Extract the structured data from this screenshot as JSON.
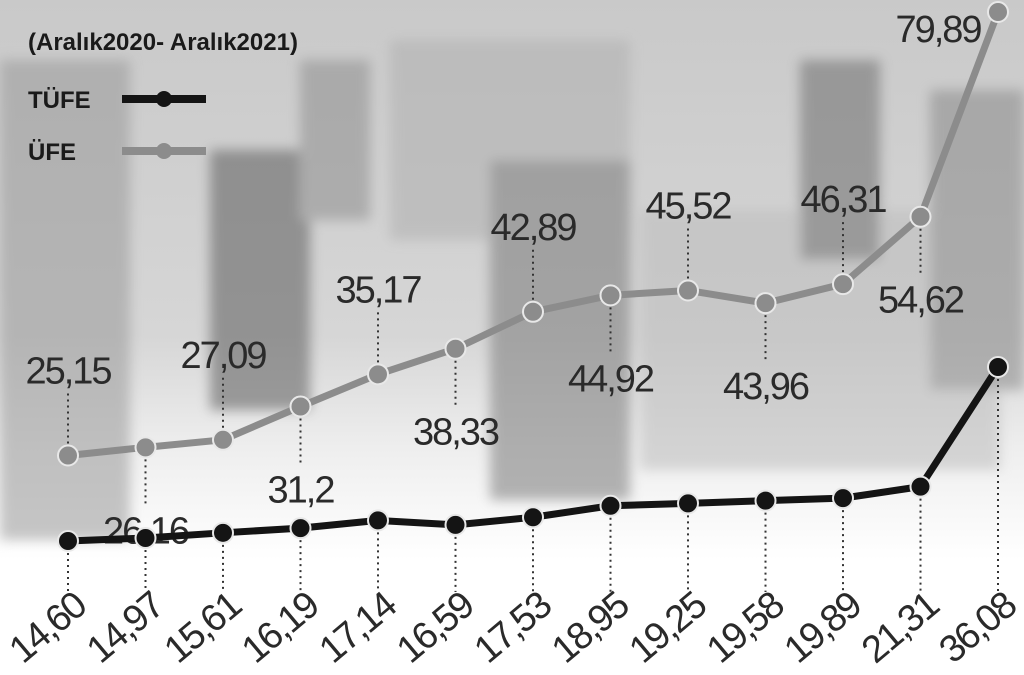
{
  "chart_data": {
    "type": "line",
    "title": "(Aralık2020- Aralık2021)",
    "categories": [
      null,
      null,
      null,
      null,
      null,
      null,
      null,
      null,
      null,
      null,
      null,
      null,
      null
    ],
    "series": [
      {
        "name": "TÜFE",
        "color": "#141414",
        "values": [
          14.6,
          14.97,
          15.61,
          16.19,
          17.14,
          16.59,
          17.53,
          18.95,
          19.25,
          19.58,
          19.89,
          21.31,
          36.08
        ],
        "value_labels": [
          "14,60",
          "14,97",
          "15,61",
          "16,19",
          "17,14",
          "16,59",
          "17,53",
          "18,95",
          "19,25",
          "19,58",
          "19,89",
          "21,31",
          "36,08"
        ]
      },
      {
        "name": "ÜFE",
        "color": "#8c8c8c",
        "values": [
          25.15,
          26.16,
          27.09,
          31.2,
          35.17,
          38.33,
          42.89,
          44.92,
          45.52,
          43.96,
          46.31,
          54.62,
          79.89
        ],
        "value_labels": [
          "25,15",
          "26,16",
          "27,09",
          "31,2",
          "35,17",
          "38,33",
          "42,89",
          "44,92",
          "45,52",
          "43,96",
          "46,31",
          "54,62",
          "79,89"
        ]
      }
    ]
  }
}
